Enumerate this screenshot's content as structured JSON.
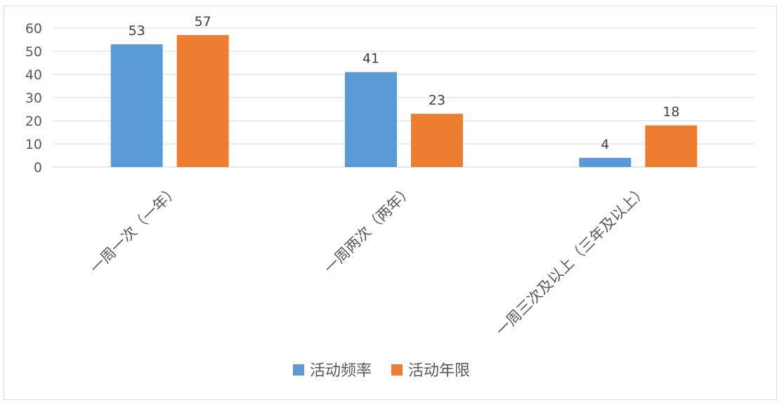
{
  "chart_data": {
    "type": "bar",
    "categories": [
      "一周一次（一年）",
      "一周两次（两年）",
      "一周三次及以上（三年及以上）"
    ],
    "series": [
      {
        "name": "活动频率",
        "values": [
          53,
          41,
          4
        ],
        "color": "#5b9bd5"
      },
      {
        "name": "活动年限",
        "values": [
          57,
          23,
          18
        ],
        "color": "#ed7d31"
      }
    ],
    "ylim": [
      0,
      60
    ],
    "yticks": [
      0,
      10,
      20,
      30,
      40,
      50,
      60
    ],
    "grid": true,
    "data_labels": true,
    "legend_position": "bottom"
  }
}
